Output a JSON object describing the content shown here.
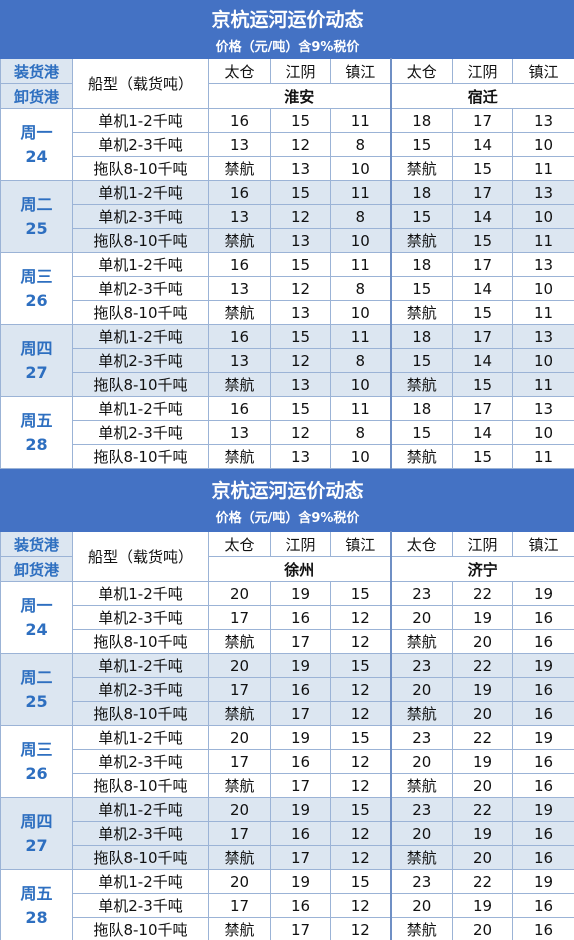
{
  "tables": [
    {
      "title": "京杭运河运价动态",
      "subtitle": "价格（元/吨）含9%税价",
      "header": {
        "load_label": "装货港",
        "unload_label": "卸货港",
        "ship_type_label": "船型（载货吨）",
        "load_ports": [
          "太仓",
          "江阴",
          "镇江",
          "太仓",
          "江阴",
          "镇江"
        ],
        "unload_ports": [
          "淮安",
          "宿迁"
        ]
      },
      "days": [
        {
          "day": "周一",
          "date": "24",
          "rows": [
            {
              "ship": "单机1-2千吨",
              "values": [
                16,
                15,
                11,
                18,
                17,
                13
              ]
            },
            {
              "ship": "单机2-3千吨",
              "values": [
                13,
                12,
                8,
                15,
                14,
                10
              ]
            },
            {
              "ship": "拖队8-10千吨",
              "values": [
                "禁航",
                13,
                10,
                "禁航",
                15,
                11
              ]
            }
          ]
        },
        {
          "day": "周二",
          "date": "25",
          "rows": [
            {
              "ship": "单机1-2千吨",
              "values": [
                16,
                15,
                11,
                18,
                17,
                13
              ]
            },
            {
              "ship": "单机2-3千吨",
              "values": [
                13,
                12,
                8,
                15,
                14,
                10
              ]
            },
            {
              "ship": "拖队8-10千吨",
              "values": [
                "禁航",
                13,
                10,
                "禁航",
                15,
                11
              ]
            }
          ]
        },
        {
          "day": "周三",
          "date": "26",
          "rows": [
            {
              "ship": "单机1-2千吨",
              "values": [
                16,
                15,
                11,
                18,
                17,
                13
              ]
            },
            {
              "ship": "单机2-3千吨",
              "values": [
                13,
                12,
                8,
                15,
                14,
                10
              ]
            },
            {
              "ship": "拖队8-10千吨",
              "values": [
                "禁航",
                13,
                10,
                "禁航",
                15,
                11
              ]
            }
          ]
        },
        {
          "day": "周四",
          "date": "27",
          "rows": [
            {
              "ship": "单机1-2千吨",
              "values": [
                16,
                15,
                11,
                18,
                17,
                13
              ]
            },
            {
              "ship": "单机2-3千吨",
              "values": [
                13,
                12,
                8,
                15,
                14,
                10
              ]
            },
            {
              "ship": "拖队8-10千吨",
              "values": [
                "禁航",
                13,
                10,
                "禁航",
                15,
                11
              ]
            }
          ]
        },
        {
          "day": "周五",
          "date": "28",
          "rows": [
            {
              "ship": "单机1-2千吨",
              "values": [
                16,
                15,
                11,
                18,
                17,
                13
              ]
            },
            {
              "ship": "单机2-3千吨",
              "values": [
                13,
                12,
                8,
                15,
                14,
                10
              ]
            },
            {
              "ship": "拖队8-10千吨",
              "values": [
                "禁航",
                13,
                10,
                "禁航",
                15,
                11
              ]
            }
          ]
        }
      ]
    },
    {
      "title": "京杭运河运价动态",
      "subtitle": "价格（元/吨）含9%税价",
      "header": {
        "load_label": "装货港",
        "unload_label": "卸货港",
        "ship_type_label": "船型（载货吨）",
        "load_ports": [
          "太仓",
          "江阴",
          "镇江",
          "太仓",
          "江阴",
          "镇江"
        ],
        "unload_ports": [
          "徐州",
          "济宁"
        ]
      },
      "days": [
        {
          "day": "周一",
          "date": "24",
          "rows": [
            {
              "ship": "单机1-2千吨",
              "values": [
                20,
                19,
                15,
                23,
                22,
                19
              ]
            },
            {
              "ship": "单机2-3千吨",
              "values": [
                17,
                16,
                12,
                20,
                19,
                16
              ]
            },
            {
              "ship": "拖队8-10千吨",
              "values": [
                "禁航",
                17,
                12,
                "禁航",
                20,
                16
              ]
            }
          ]
        },
        {
          "day": "周二",
          "date": "25",
          "rows": [
            {
              "ship": "单机1-2千吨",
              "values": [
                20,
                19,
                15,
                23,
                22,
                19
              ]
            },
            {
              "ship": "单机2-3千吨",
              "values": [
                17,
                16,
                12,
                20,
                19,
                16
              ]
            },
            {
              "ship": "拖队8-10千吨",
              "values": [
                "禁航",
                17,
                12,
                "禁航",
                20,
                16
              ]
            }
          ]
        },
        {
          "day": "周三",
          "date": "26",
          "rows": [
            {
              "ship": "单机1-2千吨",
              "values": [
                20,
                19,
                15,
                23,
                22,
                19
              ]
            },
            {
              "ship": "单机2-3千吨",
              "values": [
                17,
                16,
                12,
                20,
                19,
                16
              ]
            },
            {
              "ship": "拖队8-10千吨",
              "values": [
                "禁航",
                17,
                12,
                "禁航",
                20,
                16
              ]
            }
          ]
        },
        {
          "day": "周四",
          "date": "27",
          "rows": [
            {
              "ship": "单机1-2千吨",
              "values": [
                20,
                19,
                15,
                23,
                22,
                19
              ]
            },
            {
              "ship": "单机2-3千吨",
              "values": [
                17,
                16,
                12,
                20,
                19,
                16
              ]
            },
            {
              "ship": "拖队8-10千吨",
              "values": [
                "禁航",
                17,
                12,
                "禁航",
                20,
                16
              ]
            }
          ]
        },
        {
          "day": "周五",
          "date": "28",
          "rows": [
            {
              "ship": "单机1-2千吨",
              "values": [
                20,
                19,
                15,
                23,
                22,
                19
              ]
            },
            {
              "ship": "单机2-3千吨",
              "values": [
                17,
                16,
                12,
                20,
                19,
                16
              ]
            },
            {
              "ship": "拖队8-10千吨",
              "values": [
                "禁航",
                17,
                12,
                "禁航",
                20,
                16
              ]
            }
          ]
        }
      ]
    }
  ]
}
